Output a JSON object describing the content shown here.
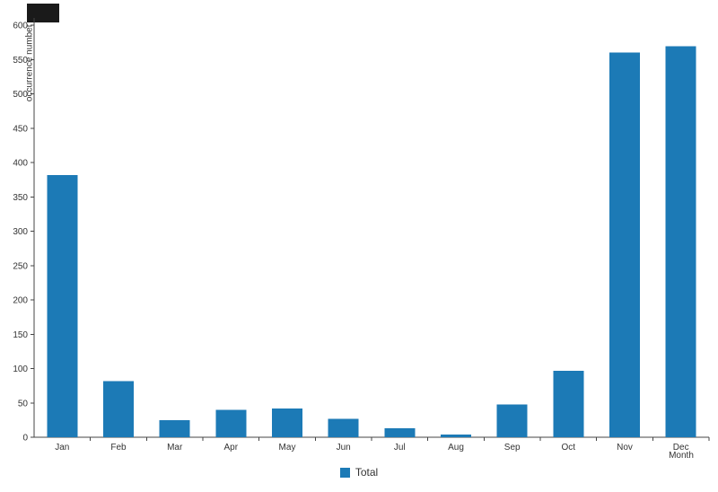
{
  "chart_data": {
    "type": "bar",
    "title": "",
    "categories": [
      "Jan",
      "Feb",
      "Mar",
      "Apr",
      "May",
      "Jun",
      "Jul",
      "Aug",
      "Sep",
      "Oct",
      "Nov",
      "Dec"
    ],
    "series": [
      {
        "name": "Total",
        "values": [
          382,
          82,
          25,
          40,
          42,
          27,
          13,
          4,
          48,
          97,
          560,
          569
        ]
      }
    ],
    "xlabel": "Month",
    "ylabel": "occurrence number",
    "ylim": [
      0,
      600
    ],
    "ytick_step": 50,
    "grid": false,
    "legend_position": "bottom",
    "bar_color": "#1c7ab6",
    "axis_color": "#444444",
    "text_color": "#333333"
  },
  "legend": {
    "items": [
      {
        "label": "Total",
        "color": "#1c7ab6"
      }
    ]
  }
}
